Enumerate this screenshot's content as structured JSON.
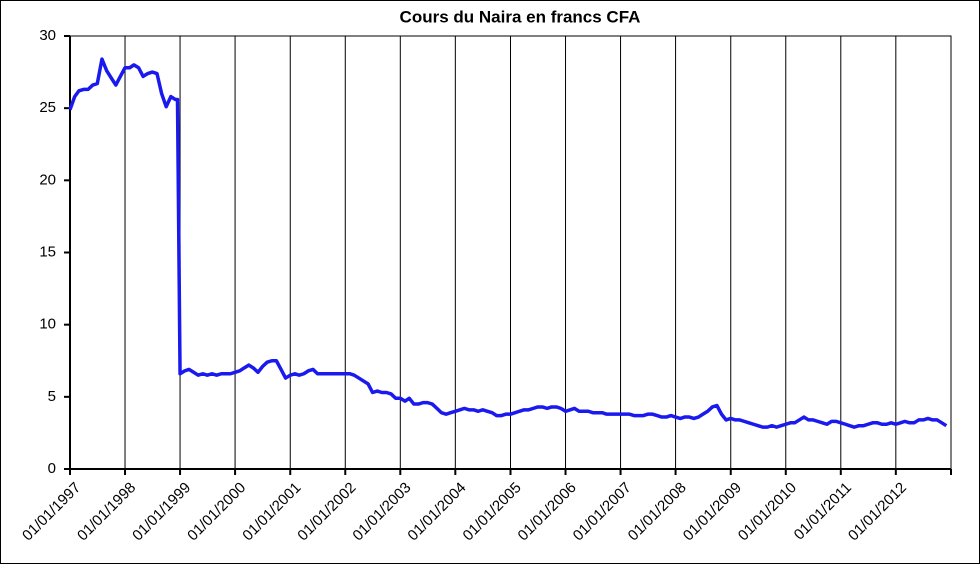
{
  "chart_data": {
    "type": "line",
    "title": "Cours du Naira en francs CFA",
    "x": [
      "1997-01-01",
      "1997-02-01",
      "1997-03-01",
      "1997-04-01",
      "1997-05-01",
      "1997-06-01",
      "1997-07-01",
      "1997-08-01",
      "1997-09-01",
      "1997-10-01",
      "1997-11-01",
      "1997-12-01",
      "1998-01-01",
      "1998-02-01",
      "1998-03-01",
      "1998-04-01",
      "1998-05-01",
      "1998-06-01",
      "1998-07-01",
      "1998-08-01",
      "1998-09-01",
      "1998-10-01",
      "1998-11-01",
      "1998-12-01",
      "1998-12-15",
      "1999-01-01",
      "1999-02-01",
      "1999-03-01",
      "1999-04-01",
      "1999-05-01",
      "1999-06-01",
      "1999-07-01",
      "1999-08-01",
      "1999-09-01",
      "1999-10-01",
      "1999-11-01",
      "1999-12-01",
      "2000-01-01",
      "2000-02-01",
      "2000-03-01",
      "2000-04-01",
      "2000-05-01",
      "2000-06-01",
      "2000-07-01",
      "2000-08-01",
      "2000-09-01",
      "2000-10-01",
      "2000-11-01",
      "2000-12-01",
      "2001-01-01",
      "2001-02-01",
      "2001-03-01",
      "2001-04-01",
      "2001-05-01",
      "2001-06-01",
      "2001-07-01",
      "2001-08-01",
      "2001-09-01",
      "2001-10-01",
      "2001-11-01",
      "2001-12-01",
      "2002-01-01",
      "2002-02-01",
      "2002-03-01",
      "2002-04-01",
      "2002-05-01",
      "2002-06-01",
      "2002-07-01",
      "2002-08-01",
      "2002-09-01",
      "2002-10-01",
      "2002-11-01",
      "2002-12-01",
      "2003-01-01",
      "2003-02-01",
      "2003-03-01",
      "2003-04-01",
      "2003-05-01",
      "2003-06-01",
      "2003-07-01",
      "2003-08-01",
      "2003-09-01",
      "2003-10-01",
      "2003-11-01",
      "2003-12-01",
      "2004-01-01",
      "2004-02-01",
      "2004-03-01",
      "2004-04-01",
      "2004-05-01",
      "2004-06-01",
      "2004-07-01",
      "2004-08-01",
      "2004-09-01",
      "2004-10-01",
      "2004-11-01",
      "2004-12-01",
      "2005-01-01",
      "2005-02-01",
      "2005-03-01",
      "2005-04-01",
      "2005-05-01",
      "2005-06-01",
      "2005-07-01",
      "2005-08-01",
      "2005-09-01",
      "2005-10-01",
      "2005-11-01",
      "2005-12-01",
      "2006-01-01",
      "2006-02-01",
      "2006-03-01",
      "2006-04-01",
      "2006-05-01",
      "2006-06-01",
      "2006-07-01",
      "2006-08-01",
      "2006-09-01",
      "2006-10-01",
      "2006-11-01",
      "2006-12-01",
      "2007-01-01",
      "2007-02-01",
      "2007-03-01",
      "2007-04-01",
      "2007-05-01",
      "2007-06-01",
      "2007-07-01",
      "2007-08-01",
      "2007-09-01",
      "2007-10-01",
      "2007-11-01",
      "2007-12-01",
      "2008-01-01",
      "2008-02-01",
      "2008-03-01",
      "2008-04-01",
      "2008-05-01",
      "2008-06-01",
      "2008-07-01",
      "2008-08-01",
      "2008-09-01",
      "2008-10-01",
      "2008-11-01",
      "2008-12-01",
      "2009-01-01",
      "2009-02-01",
      "2009-03-01",
      "2009-04-01",
      "2009-05-01",
      "2009-06-01",
      "2009-07-01",
      "2009-08-01",
      "2009-09-01",
      "2009-10-01",
      "2009-11-01",
      "2009-12-01",
      "2010-01-01",
      "2010-02-01",
      "2010-03-01",
      "2010-04-01",
      "2010-05-01",
      "2010-06-01",
      "2010-07-01",
      "2010-08-01",
      "2010-09-01",
      "2010-10-01",
      "2010-11-01",
      "2010-12-01",
      "2011-01-01",
      "2011-02-01",
      "2011-03-01",
      "2011-04-01",
      "2011-05-01",
      "2011-06-01",
      "2011-07-01",
      "2011-08-01",
      "2011-09-01",
      "2011-10-01",
      "2011-11-01",
      "2011-12-01",
      "2012-01-01",
      "2012-02-01",
      "2012-03-01",
      "2012-04-01",
      "2012-05-01",
      "2012-06-01",
      "2012-07-01",
      "2012-08-01",
      "2012-09-01",
      "2012-10-01",
      "2012-11-01",
      "2012-12-01"
    ],
    "series": [
      {
        "color": "#1a1aee",
        "values": [
          24.9,
          25.8,
          26.2,
          26.3,
          26.3,
          26.6,
          26.7,
          28.4,
          27.6,
          27.1,
          26.6,
          27.2,
          27.8,
          27.8,
          28.0,
          27.8,
          27.2,
          27.4,
          27.5,
          27.4,
          26.0,
          25.1,
          25.8,
          25.6,
          25.6,
          6.6,
          6.8,
          6.9,
          6.7,
          6.5,
          6.6,
          6.5,
          6.6,
          6.5,
          6.6,
          6.6,
          6.6,
          6.7,
          6.8,
          7.0,
          7.2,
          7.0,
          6.7,
          7.1,
          7.4,
          7.5,
          7.5,
          6.9,
          6.3,
          6.5,
          6.6,
          6.5,
          6.6,
          6.8,
          6.9,
          6.6,
          6.6,
          6.6,
          6.6,
          6.6,
          6.6,
          6.6,
          6.6,
          6.5,
          6.3,
          6.1,
          5.9,
          5.3,
          5.4,
          5.3,
          5.3,
          5.2,
          4.9,
          4.9,
          4.7,
          4.9,
          4.5,
          4.5,
          4.6,
          4.6,
          4.5,
          4.2,
          3.9,
          3.8,
          3.9,
          4.0,
          4.1,
          4.2,
          4.1,
          4.1,
          4.0,
          4.1,
          4.0,
          3.9,
          3.7,
          3.7,
          3.8,
          3.8,
          3.9,
          4.0,
          4.1,
          4.1,
          4.2,
          4.3,
          4.3,
          4.2,
          4.3,
          4.3,
          4.2,
          4.0,
          4.1,
          4.2,
          4.0,
          4.0,
          4.0,
          3.9,
          3.9,
          3.9,
          3.8,
          3.8,
          3.8,
          3.8,
          3.8,
          3.8,
          3.7,
          3.7,
          3.7,
          3.8,
          3.8,
          3.7,
          3.6,
          3.6,
          3.7,
          3.6,
          3.5,
          3.6,
          3.6,
          3.5,
          3.6,
          3.8,
          4.0,
          4.3,
          4.4,
          3.8,
          3.4,
          3.5,
          3.4,
          3.4,
          3.3,
          3.2,
          3.1,
          3.0,
          2.9,
          2.9,
          3.0,
          2.9,
          3.0,
          3.1,
          3.2,
          3.2,
          3.4,
          3.6,
          3.4,
          3.4,
          3.3,
          3.2,
          3.1,
          3.3,
          3.3,
          3.2,
          3.1,
          3.0,
          2.9,
          3.0,
          3.0,
          3.1,
          3.2,
          3.2,
          3.1,
          3.1,
          3.2,
          3.1,
          3.2,
          3.3,
          3.2,
          3.2,
          3.4,
          3.4,
          3.5,
          3.4,
          3.4,
          3.2,
          3.0
        ]
      }
    ],
    "xlim": [
      "1997-01-01",
      "2013-01-01"
    ],
    "xticks": [
      {
        "value": "1997-01-01",
        "label": "01/01/1997"
      },
      {
        "value": "1998-01-01",
        "label": "01/01/1998"
      },
      {
        "value": "1999-01-01",
        "label": "01/01/1999"
      },
      {
        "value": "2000-01-01",
        "label": "01/01/2000"
      },
      {
        "value": "2001-01-01",
        "label": "01/01/2001"
      },
      {
        "value": "2002-01-01",
        "label": "01/01/2002"
      },
      {
        "value": "2003-01-01",
        "label": "01/01/2003"
      },
      {
        "value": "2004-01-01",
        "label": "01/01/2004"
      },
      {
        "value": "2005-01-01",
        "label": "01/01/2005"
      },
      {
        "value": "2006-01-01",
        "label": "01/01/2006"
      },
      {
        "value": "2007-01-01",
        "label": "01/01/2007"
      },
      {
        "value": "2008-01-01",
        "label": "01/01/2008"
      },
      {
        "value": "2009-01-01",
        "label": "01/01/2009"
      },
      {
        "value": "2010-01-01",
        "label": "01/01/2010"
      },
      {
        "value": "2011-01-01",
        "label": "01/01/2011"
      },
      {
        "value": "2012-01-01",
        "label": "01/01/2012"
      }
    ],
    "ylim": [
      0,
      30
    ],
    "yticks": [
      0,
      5,
      10,
      15,
      20,
      25,
      30
    ],
    "grid": "x"
  }
}
